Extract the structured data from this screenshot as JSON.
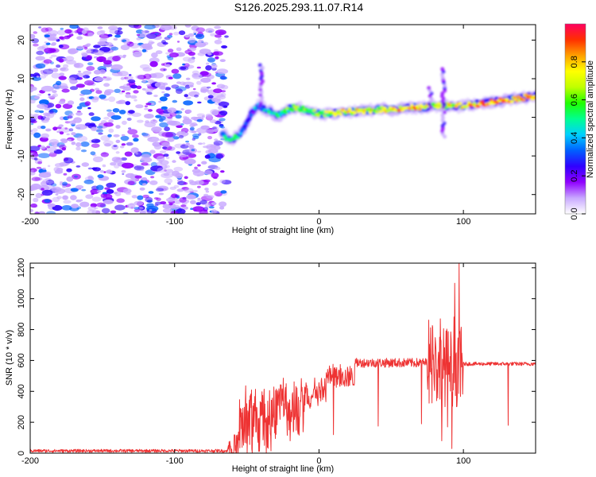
{
  "figure_title": "S126.2025.293.11.07.R14",
  "chart_data": [
    {
      "type": "heatmap",
      "title": "S126.2025.293.11.07.R14",
      "xlabel": "Height of straight line (km)",
      "ylabel": "Frequency (Hz)",
      "xlim": [
        -200,
        150
      ],
      "ylim": [
        -25,
        24
      ],
      "xticks": [
        -200,
        -100,
        0,
        100
      ],
      "yticks": [
        -20,
        -10,
        0,
        10,
        20
      ],
      "noise_region_x": [
        -200,
        -67
      ],
      "colorbar": {
        "label": "Normalized spectral amplitude",
        "range": [
          0,
          1
        ],
        "ticks": [
          0.0,
          0.2,
          0.4,
          0.6,
          0.8
        ],
        "tick_labels": [
          "0.0",
          "0.2",
          "0.4",
          "0.6",
          "0.8"
        ],
        "colors": [
          "#ffffff",
          "#c8a8ff",
          "#9000ff",
          "#3000ff",
          "#0060ff",
          "#00d0ff",
          "#00ff90",
          "#20ff00",
          "#c0ff00",
          "#ffff00",
          "#ffa000",
          "#ff3000",
          "#ff0060"
        ]
      },
      "signal_track": {
        "x": [
          -67,
          -62,
          -57,
          -52,
          -47,
          -42,
          -37,
          -32,
          -27,
          -22,
          -17,
          -10,
          0,
          10,
          20,
          30,
          40,
          50,
          60,
          70,
          80,
          90,
          100,
          110,
          120,
          130,
          140,
          150
        ],
        "freq": [
          -4,
          -6,
          -5,
          -3,
          1,
          3,
          2,
          1,
          0.5,
          2,
          2.5,
          2,
          1,
          1,
          1.5,
          1.5,
          2,
          2,
          2.5,
          2.5,
          3,
          3,
          3,
          3.5,
          4,
          4.5,
          5,
          5.5
        ],
        "amplitude": [
          0.35,
          0.5,
          0.45,
          0.3,
          0.3,
          0.35,
          0.4,
          0.5,
          0.5,
          0.55,
          0.6,
          0.55,
          0.6,
          0.65,
          0.7,
          0.75,
          0.7,
          0.75,
          0.8,
          0.75,
          0.7,
          0.7,
          0.75,
          0.8,
          0.85,
          0.8,
          0.8,
          0.8
        ]
      }
    },
    {
      "type": "line",
      "title": "",
      "xlabel": "Height of straight line (km)",
      "ylabel": "SNR (10 * v/v)",
      "xlim": [
        -200,
        150
      ],
      "ylim": [
        0,
        1230
      ],
      "xticks": [
        -200,
        -100,
        0,
        100
      ],
      "yticks": [
        0,
        200,
        400,
        600,
        800,
        1000,
        1200
      ],
      "series": [
        {
          "name": "SNR",
          "color": "#ee3333",
          "segments": [
            {
              "x0": -200,
              "x1": -63,
              "base": 15,
              "noise": 10
            },
            {
              "x0": -63,
              "x1": -55,
              "base": 40,
              "noise": 80
            },
            {
              "x0": -55,
              "x1": -30,
              "base": 180,
              "noise": 200
            },
            {
              "x0": -30,
              "x1": -10,
              "base": 280,
              "noise": 170
            },
            {
              "x0": -10,
              "x1": 5,
              "base": 370,
              "noise": 90
            },
            {
              "x0": 5,
              "x1": 25,
              "base": 490,
              "noise": 70
            },
            {
              "x0": 25,
              "x1": 75,
              "base": 585,
              "noise": 30
            },
            {
              "x0": 75,
              "x1": 100,
              "base": 560,
              "noise": 260
            },
            {
              "x0": 100,
              "x1": 150,
              "base": 578,
              "noise": 12
            }
          ],
          "dips": [
            {
              "x": -20,
              "y": 80
            },
            {
              "x": 10,
              "y": 120
            },
            {
              "x": 41,
              "y": 175
            },
            {
              "x": 71,
              "y": 190
            },
            {
              "x": 85,
              "y": 80
            },
            {
              "x": 89,
              "y": 170
            },
            {
              "x": 92,
              "y": 30
            },
            {
              "x": 131,
              "y": 180
            }
          ],
          "spikes": [
            {
              "x": 84,
              "y": 870
            },
            {
              "x": 94,
              "y": 1100
            },
            {
              "x": 97,
              "y": 1230
            }
          ]
        }
      ]
    }
  ]
}
